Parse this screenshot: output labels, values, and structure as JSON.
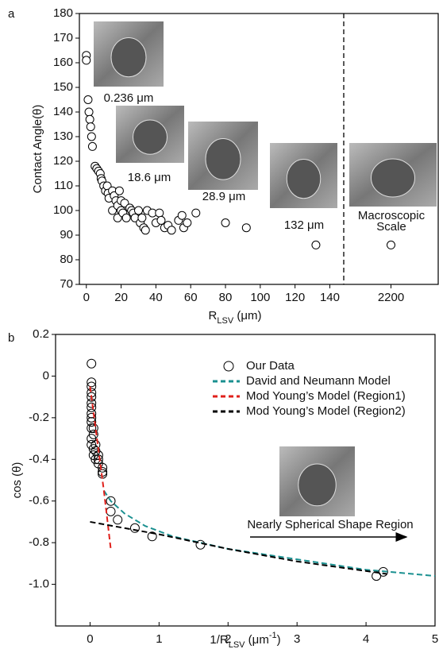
{
  "chart_data": [
    {
      "type": "scatter",
      "panel": "a",
      "y_label": "Contact Angle(θ)",
      "x_label_parts": [
        "R",
        "LSV",
        " (μm)"
      ],
      "x": [
        0,
        0,
        1,
        1.5,
        2,
        2.5,
        3,
        3.5,
        5,
        6,
        7,
        8,
        8.5,
        9,
        10,
        11,
        12,
        12.5,
        13,
        15,
        15,
        16,
        17,
        18,
        18,
        19,
        20,
        20,
        21,
        22,
        23,
        25,
        26,
        27,
        28,
        30,
        31,
        32,
        33,
        34,
        35,
        38,
        40,
        42,
        43,
        45,
        47,
        49,
        53,
        55,
        56,
        58,
        63,
        80,
        92,
        132,
        2200
      ],
      "values": [
        163,
        161,
        145,
        140,
        137,
        134,
        130,
        126,
        118,
        117,
        116,
        115,
        113,
        112,
        110,
        108,
        110,
        107,
        105,
        108,
        100,
        106,
        104,
        102,
        97,
        108,
        100,
        104,
        99,
        103,
        97,
        101,
        100,
        99,
        97,
        100,
        95,
        97,
        93,
        92,
        100,
        99,
        95,
        99,
        96,
        93,
        94,
        92,
        96,
        98,
        93,
        95,
        99,
        95,
        93,
        86,
        86
      ],
      "segments": [
        {
          "xlim": [
            -4,
            148
          ],
          "xticks": [
            0,
            20,
            40,
            60,
            80,
            100,
            120,
            140
          ]
        },
        {
          "xlim": [
            2150,
            2250
          ],
          "xticks": [
            2200
          ]
        }
      ],
      "ylim": [
        70,
        180
      ],
      "yticks": [
        70,
        80,
        90,
        100,
        110,
        120,
        130,
        140,
        150,
        160,
        170,
        180
      ],
      "color": "#000000",
      "break_line": true,
      "insets": [
        {
          "label_lines": [
            "0.236 μm"
          ]
        },
        {
          "label_lines": [
            "18.6 μm"
          ]
        },
        {
          "label_lines": [
            "28.9 μm"
          ]
        },
        {
          "label_lines": [
            "132 μm"
          ]
        },
        {
          "label_lines": [
            "Macroscopic",
            "Scale"
          ]
        }
      ]
    },
    {
      "type": "scatter",
      "panel": "b",
      "y_label": "cos (θ)",
      "x_label_parts": [
        "1/R",
        "LSV",
        " (μm",
        "-1",
        ")"
      ],
      "xlim": [
        -0.5,
        5
      ],
      "xticks": [
        0,
        1,
        2,
        3,
        4,
        5
      ],
      "ylim": [
        -1.2,
        0.2
      ],
      "yticks": [
        0.2,
        0,
        -0.2,
        -0.4,
        -0.6,
        -0.8,
        {
          "value": -1,
          "label": "-1.0"
        }
      ],
      "series": [
        {
          "name": "Our Data",
          "kind": "markers",
          "color": "#000000",
          "x": [
            0.02,
            0.02,
            0.02,
            0.02,
            0.02,
            0.02,
            0.02,
            0.02,
            0.02,
            0.02,
            0.02,
            0.02,
            0.02,
            0.05,
            0.05,
            0.05,
            0.05,
            0.08,
            0.08,
            0.08,
            0.12,
            0.12,
            0.12,
            0.18,
            0.18,
            0.18,
            0.3,
            0.3,
            0.4,
            0.65,
            0.9,
            1.6,
            4.15,
            4.25
          ],
          "values": [
            0.06,
            -0.03,
            -0.05,
            -0.08,
            -0.1,
            -0.13,
            -0.15,
            -0.18,
            -0.2,
            -0.22,
            -0.25,
            -0.3,
            -0.33,
            -0.25,
            -0.28,
            -0.35,
            -0.38,
            -0.33,
            -0.36,
            -0.4,
            -0.38,
            -0.4,
            -0.42,
            -0.44,
            -0.46,
            -0.47,
            -0.6,
            -0.65,
            -0.69,
            -0.73,
            -0.77,
            -0.81,
            -0.96,
            -0.94
          ]
        },
        {
          "name": "David and Neumann Model",
          "kind": "dashed",
          "color": "#1a9090",
          "x": [
            0.2,
            0.3,
            0.5,
            0.8,
            1.2,
            2,
            3,
            4,
            5
          ],
          "values": [
            -0.55,
            -0.6,
            -0.66,
            -0.72,
            -0.77,
            -0.83,
            -0.88,
            -0.93,
            -0.96
          ]
        },
        {
          "name": "Mod Young’s Model (Region1)",
          "kind": "dashed",
          "color": "#e0201b",
          "x": [
            0,
            0.1,
            0.2,
            0.3
          ],
          "values": [
            -0.05,
            -0.3,
            -0.55,
            -0.83
          ]
        },
        {
          "name": "Mod Young’s Model (Region2)",
          "kind": "dashed",
          "color": "#000000",
          "x": [
            0,
            1,
            2,
            3,
            4.3
          ],
          "values": [
            -0.7,
            -0.76,
            -0.83,
            -0.89,
            -0.95
          ]
        }
      ],
      "annotation": "Nearly Spherical Shape Region"
    }
  ]
}
